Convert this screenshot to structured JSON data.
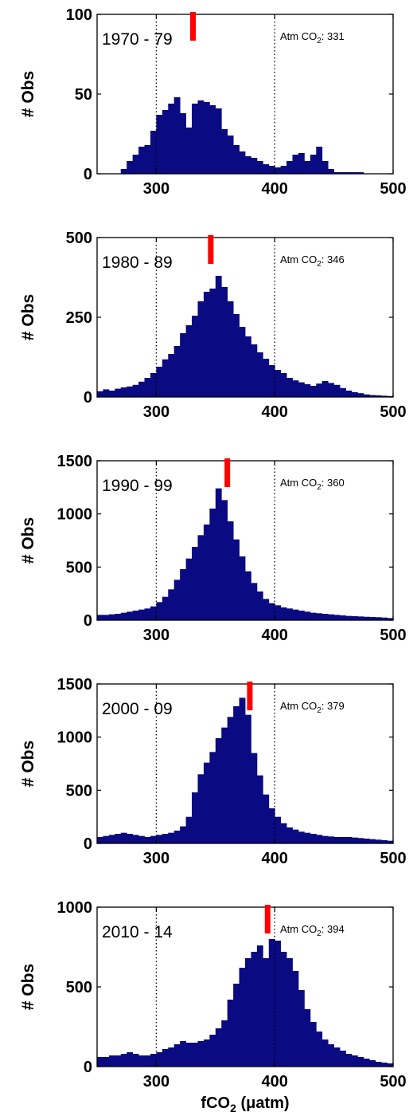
{
  "chart_data": [
    {
      "type": "bar",
      "period": "1970 - 79",
      "atm_label": "Atm CO",
      "atm_sub": "2",
      "atm_value": ": 331",
      "atm_marker_x": 331,
      "ylabel": "# Obs",
      "xlim": [
        250,
        500
      ],
      "ylim": [
        0,
        100
      ],
      "xticks": [
        "300",
        "400",
        "500"
      ],
      "yticks": [
        "0",
        "50",
        "100"
      ],
      "reference_lines_x": [
        300,
        400
      ],
      "bin_width": 5,
      "bin_start": 250,
      "values": [
        0,
        0,
        0,
        0,
        3,
        8,
        12,
        17,
        18,
        27,
        37,
        40,
        44,
        48,
        38,
        29,
        44,
        46,
        45,
        43,
        41,
        28,
        24,
        18,
        14,
        11,
        10,
        8,
        6,
        5,
        4,
        5,
        8,
        12,
        13,
        8,
        12,
        17,
        8,
        3,
        1,
        1,
        1,
        1,
        1,
        0,
        0,
        0,
        0,
        0
      ]
    },
    {
      "type": "bar",
      "period": "1980 - 89",
      "atm_label": "Atm CO",
      "atm_sub": "2",
      "atm_value": ": 346",
      "atm_marker_x": 346,
      "ylabel": "# Obs",
      "xlim": [
        250,
        500
      ],
      "ylim": [
        0,
        500
      ],
      "xticks": [
        "300",
        "400",
        "500"
      ],
      "yticks": [
        "0",
        "250",
        "500"
      ],
      "reference_lines_x": [
        300,
        400
      ],
      "bin_width": 5,
      "bin_start": 250,
      "values": [
        18,
        24,
        20,
        26,
        30,
        33,
        38,
        48,
        60,
        75,
        95,
        118,
        135,
        160,
        200,
        225,
        255,
        300,
        330,
        340,
        380,
        345,
        300,
        260,
        220,
        190,
        165,
        140,
        120,
        100,
        85,
        75,
        60,
        52,
        46,
        40,
        35,
        42,
        50,
        44,
        38,
        28,
        20,
        15,
        12,
        8,
        6,
        5,
        4,
        3
      ]
    },
    {
      "type": "bar",
      "period": "1990 - 99",
      "atm_label": "Atm CO",
      "atm_sub": "2",
      "atm_value": ": 360",
      "atm_marker_x": 360,
      "ylabel": "# Obs",
      "xlim": [
        250,
        500
      ],
      "ylim": [
        0,
        1500
      ],
      "xticks": [
        "300",
        "400",
        "500"
      ],
      "yticks": [
        "0",
        "500",
        "1000",
        "1500"
      ],
      "reference_lines_x": [
        300,
        400
      ],
      "bin_width": 5,
      "bin_start": 250,
      "values": [
        50,
        50,
        55,
        60,
        70,
        80,
        90,
        100,
        110,
        130,
        170,
        220,
        290,
        380,
        480,
        580,
        690,
        800,
        900,
        1050,
        1240,
        1130,
        930,
        760,
        600,
        460,
        350,
        270,
        200,
        160,
        140,
        120,
        110,
        100,
        90,
        80,
        70,
        65,
        60,
        55,
        50,
        45,
        40,
        38,
        35,
        32,
        30,
        28,
        25,
        20
      ]
    },
    {
      "type": "bar",
      "period": "2000 - 09",
      "atm_label": "Atm CO",
      "atm_sub": "2",
      "atm_value": ": 379",
      "atm_marker_x": 379,
      "ylabel": "# Obs",
      "xlim": [
        250,
        500
      ],
      "ylim": [
        0,
        1500
      ],
      "xticks": [
        "300",
        "400",
        "500"
      ],
      "yticks": [
        "0",
        "500",
        "1000",
        "1500"
      ],
      "reference_lines_x": [
        300,
        400
      ],
      "bin_width": 5,
      "bin_start": 250,
      "values": [
        60,
        70,
        80,
        90,
        100,
        90,
        80,
        70,
        60,
        70,
        80,
        90,
        100,
        120,
        160,
        250,
        480,
        650,
        760,
        860,
        990,
        1090,
        1190,
        1290,
        1370,
        1210,
        850,
        640,
        460,
        330,
        250,
        190,
        150,
        130,
        110,
        100,
        90,
        80,
        70,
        65,
        60,
        60,
        60,
        55,
        50,
        45,
        40,
        35,
        30,
        25
      ]
    },
    {
      "type": "bar",
      "period": "2010 - 14",
      "atm_label": "Atm CO",
      "atm_sub": "2",
      "atm_value": ": 394",
      "atm_marker_x": 394,
      "ylabel": "# Obs",
      "xlabel": "fCO",
      "xlabel_sub": "2",
      "xlabel_unit": " (μatm)",
      "xlim": [
        250,
        500
      ],
      "ylim": [
        0,
        1000
      ],
      "xticks": [
        "300",
        "400",
        "500"
      ],
      "yticks": [
        "0",
        "500",
        "1000"
      ],
      "reference_lines_x": [
        300,
        400
      ],
      "bin_width": 5,
      "bin_start": 250,
      "values": [
        60,
        60,
        70,
        70,
        80,
        90,
        80,
        70,
        70,
        80,
        90,
        110,
        120,
        140,
        160,
        150,
        150,
        160,
        170,
        200,
        240,
        290,
        420,
        520,
        620,
        680,
        720,
        760,
        680,
        800,
        790,
        720,
        680,
        600,
        480,
        360,
        280,
        220,
        170,
        140,
        120,
        100,
        80,
        70,
        60,
        50,
        40,
        30,
        25,
        20
      ]
    }
  ],
  "colors": {
    "bars": "#0a0a82",
    "marker": "#ff0000",
    "axis": "#000000"
  }
}
